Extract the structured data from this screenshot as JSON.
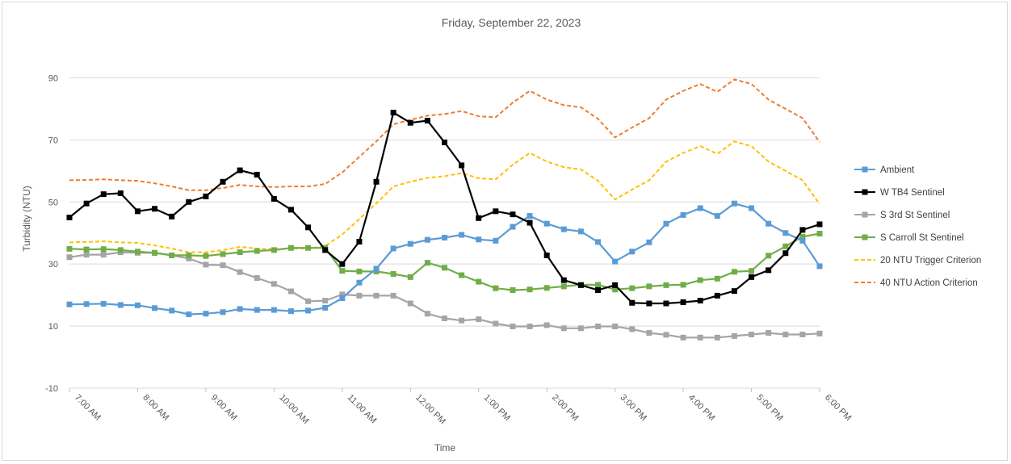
{
  "chart_data": {
    "type": "line",
    "title": "Friday, September 22, 2023",
    "xlabel": "Time",
    "ylabel": "Turbidity (NTU)",
    "ylim": [
      -10,
      100
    ],
    "yticks": [
      -10,
      10,
      30,
      50,
      70,
      90
    ],
    "x_range": [
      "7:00 AM",
      "6:00 PM"
    ],
    "xticks": [
      "7:00 AM",
      "8:00 AM",
      "9:00 AM",
      "10:00 AM",
      "11:00 AM",
      "12:00 PM",
      "1:00 PM",
      "2:00 PM",
      "3:00 PM",
      "4:00 PM",
      "5:00 PM",
      "6:00 PM"
    ],
    "grid": "horizontal",
    "legend_position": "right",
    "x": [
      "7:00 AM",
      "7:15 AM",
      "7:30 AM",
      "7:45 AM",
      "8:00 AM",
      "8:15 AM",
      "8:30 AM",
      "8:45 AM",
      "9:00 AM",
      "9:15 AM",
      "9:30 AM",
      "9:45 AM",
      "10:00 AM",
      "10:15 AM",
      "10:30 AM",
      "10:45 AM",
      "11:00 AM",
      "11:15 AM",
      "11:30 AM",
      "11:45 AM",
      "12:00 PM",
      "12:15 PM",
      "12:30 PM",
      "12:45 PM",
      "1:00 PM",
      "1:15 PM",
      "1:30 PM",
      "1:45 PM",
      "2:00 PM",
      "2:15 PM",
      "2:30 PM",
      "2:45 PM",
      "3:00 PM",
      "3:15 PM",
      "3:30 PM",
      "3:45 PM",
      "4:00 PM",
      "4:15 PM",
      "4:30 PM",
      "4:45 PM",
      "5:00 PM",
      "5:15 PM",
      "5:30 PM",
      "5:45 PM",
      "6:00 PM"
    ],
    "series": [
      {
        "name": "Ambient",
        "color": "#5b9bd5",
        "style": "solid",
        "marker": true,
        "values": [
          17,
          17.1,
          17.2,
          16.8,
          16.7,
          15.8,
          15,
          13.8,
          14,
          14.5,
          15.5,
          15.2,
          15.2,
          14.8,
          15,
          15.9,
          19,
          24,
          28.5,
          35,
          36.5,
          37.8,
          38.5,
          39.4,
          37.9,
          37.5,
          42,
          45.5,
          43,
          41.2,
          40.5,
          37.1,
          30.8,
          34,
          37,
          43,
          45.8,
          48,
          45.5,
          49.5,
          48,
          43,
          40,
          37.5,
          29.3
        ]
      },
      {
        "name": "W TB4 Sentinel",
        "color": "#000000",
        "style": "solid",
        "marker": true,
        "values": [
          45,
          49.5,
          52.5,
          52.8,
          47,
          47.8,
          45.3,
          50,
          51.8,
          56.5,
          60.2,
          58.8,
          51,
          47.5,
          41.8,
          34.5,
          30,
          37.2,
          56.5,
          78.8,
          75.5,
          76.2,
          69.2,
          61.8,
          44.8,
          47,
          46,
          43.3,
          32.8,
          24.8,
          23.2,
          21.6,
          23.2,
          17.5,
          17.3,
          17.3,
          17.7,
          18.2,
          19.8,
          21.3,
          25.8,
          28,
          33.5,
          41,
          42.8
        ]
      },
      {
        "name": "S 3rd St Sentinel",
        "color": "#a5a5a5",
        "style": "solid",
        "marker": true,
        "values": [
          32.2,
          33,
          33,
          33.8,
          33.6,
          33.6,
          32.8,
          31.8,
          29.8,
          29.6,
          27.4,
          25.5,
          23.6,
          21.2,
          18,
          18.2,
          20.2,
          19.8,
          19.8,
          19.8,
          17.3,
          14,
          12.5,
          11.8,
          12.2,
          10.8,
          9.9,
          9.9,
          10.3,
          9.3,
          9.3,
          9.9,
          9.9,
          9,
          7.8,
          7.2,
          6.3,
          6.3,
          6.3,
          6.8,
          7.3,
          7.8,
          7.3,
          7.3,
          7.6
        ]
      },
      {
        "name": "S Carroll St Sentinel",
        "color": "#70ad47",
        "style": "solid",
        "marker": true,
        "values": [
          34.9,
          34.7,
          34.8,
          34.5,
          34,
          33.6,
          32.8,
          32.8,
          32.6,
          33.2,
          33.8,
          34.2,
          34.5,
          35.2,
          35.2,
          35.2,
          27.8,
          27.6,
          27.6,
          26.8,
          25.8,
          30.4,
          28.8,
          26.4,
          24.3,
          22.2,
          21.6,
          21.8,
          22.3,
          22.8,
          23.3,
          23.3,
          21.8,
          22.2,
          22.8,
          23.2,
          23.3,
          24.8,
          25.3,
          27.5,
          27.8,
          32.7,
          35.7,
          38.8,
          39.8
        ]
      },
      {
        "name": "20 NTU Trigger Criterion",
        "color": "#ffc000",
        "style": "dashed",
        "marker": false,
        "values": [
          37,
          37.1,
          37.3,
          37,
          36.8,
          36,
          35,
          33.8,
          33.8,
          34.5,
          35.5,
          35,
          34.8,
          35,
          35,
          35.8,
          39.5,
          44.5,
          49.5,
          55,
          56.5,
          57.8,
          58.3,
          59.3,
          57.6,
          57.3,
          62,
          65.8,
          63,
          61.2,
          60.5,
          56.8,
          50.8,
          54,
          57,
          63,
          65.8,
          68,
          65.5,
          69.5,
          68,
          63,
          60,
          57,
          49.3
        ]
      },
      {
        "name": "40 NTU Action Criterion",
        "color": "#ed7d31",
        "style": "dashed",
        "marker": false,
        "values": [
          57,
          57.1,
          57.3,
          57,
          56.8,
          56,
          55,
          53.8,
          53.8,
          54.5,
          55.5,
          55,
          54.8,
          55,
          55,
          55.8,
          59.5,
          64.5,
          69.5,
          75,
          76.5,
          77.8,
          78.3,
          79.3,
          77.6,
          77.3,
          82,
          85.8,
          83,
          81.2,
          80.5,
          76.8,
          70.8,
          74,
          77,
          83,
          85.8,
          88,
          85.5,
          89.5,
          88,
          83,
          80,
          77,
          69.3
        ]
      }
    ]
  }
}
